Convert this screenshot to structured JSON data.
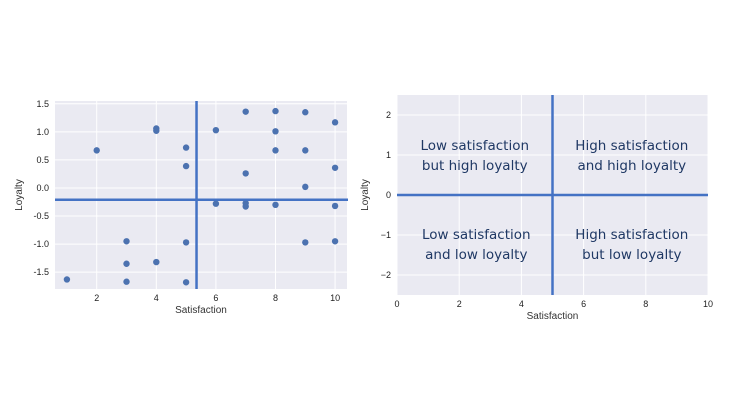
{
  "colors": {
    "panel_bg": "#eaeaf2",
    "grid": "#ffffff",
    "point": "#4c72b0",
    "divider": "#4472c4",
    "quadrant_text": "#1f3864"
  },
  "chart_data": [
    {
      "type": "scatter",
      "title": "",
      "xlabel": "Satisfaction",
      "ylabel": "Loyalty",
      "xlim": [
        0.6,
        10.4
      ],
      "ylim": [
        -1.8,
        1.55
      ],
      "xticks": [
        2,
        4,
        6,
        8,
        10
      ],
      "yticks": [
        -1.5,
        -1.0,
        -0.5,
        0.0,
        0.5,
        1.0,
        1.5
      ],
      "xtick_labels": [
        "2",
        "4",
        "6",
        "8",
        "10"
      ],
      "ytick_labels": [
        "-1.5",
        "-1.0",
        "-0.5",
        "0.0",
        "0.5",
        "1.0",
        "1.5"
      ],
      "grid": true,
      "divider_x": 5.35,
      "divider_y": -0.21,
      "points": [
        {
          "x": 1,
          "y": -1.63
        },
        {
          "x": 2,
          "y": 0.67
        },
        {
          "x": 3,
          "y": -0.95
        },
        {
          "x": 3,
          "y": -1.35
        },
        {
          "x": 3,
          "y": -1.67
        },
        {
          "x": 4,
          "y": 1.06
        },
        {
          "x": 4,
          "y": 1.02
        },
        {
          "x": 4,
          "y": -1.32
        },
        {
          "x": 5,
          "y": 0.72
        },
        {
          "x": 5,
          "y": 0.39
        },
        {
          "x": 5,
          "y": -0.97
        },
        {
          "x": 5,
          "y": -1.68
        },
        {
          "x": 6,
          "y": 1.03
        },
        {
          "x": 6,
          "y": -0.28
        },
        {
          "x": 7,
          "y": 1.36
        },
        {
          "x": 7,
          "y": 0.26
        },
        {
          "x": 7,
          "y": -0.27
        },
        {
          "x": 7,
          "y": -0.33
        },
        {
          "x": 8,
          "y": 1.37
        },
        {
          "x": 8,
          "y": 1.01
        },
        {
          "x": 8,
          "y": 0.67
        },
        {
          "x": 8,
          "y": -0.3
        },
        {
          "x": 9,
          "y": 1.35
        },
        {
          "x": 9,
          "y": 0.67
        },
        {
          "x": 9,
          "y": 0.02
        },
        {
          "x": 9,
          "y": -0.97
        },
        {
          "x": 10,
          "y": 1.17
        },
        {
          "x": 10,
          "y": 0.36
        },
        {
          "x": 10,
          "y": -0.32
        },
        {
          "x": 10,
          "y": -0.95
        }
      ]
    },
    {
      "type": "scatter",
      "title": "",
      "xlabel": "Satisfaction",
      "ylabel": "Loyalty",
      "xlim": [
        0,
        10
      ],
      "ylim": [
        -2.5,
        2.5
      ],
      "xticks": [
        0,
        2,
        4,
        6,
        8,
        10
      ],
      "yticks": [
        -2,
        -1,
        0,
        1,
        2
      ],
      "xtick_labels": [
        "0",
        "2",
        "4",
        "6",
        "8",
        "10"
      ],
      "ytick_labels": [
        "−2",
        "−1",
        "0",
        "1",
        "2"
      ],
      "grid": true,
      "divider_x": 5,
      "divider_y": 0,
      "annotations": [
        {
          "lines": [
            "Low satisfaction",
            "but high loyalty"
          ],
          "x": 2.5,
          "y": 1.0
        },
        {
          "lines": [
            "High satisfaction",
            "and high loyalty"
          ],
          "x": 7.55,
          "y": 1.0
        },
        {
          "lines": [
            "Low satisfaction",
            "and low loyalty"
          ],
          "x": 2.55,
          "y": -1.22
        },
        {
          "lines": [
            "High satisfaction",
            "but low loyalty"
          ],
          "x": 7.55,
          "y": -1.22
        }
      ]
    }
  ]
}
